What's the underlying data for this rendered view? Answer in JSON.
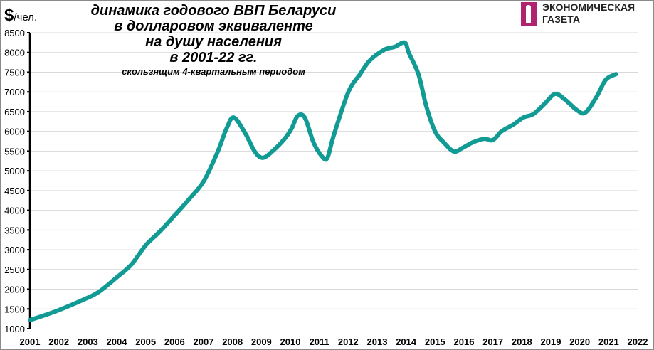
{
  "unit": {
    "symbol": "$",
    "label": "/чел."
  },
  "title_lines": [
    "динамика годового ВВП Беларуси",
    "в долларовом эквиваленте",
    "на душу населения",
    "в 2001-22 гг."
  ],
  "subtitle": "скользящим 4-квартальным периодом",
  "logo": {
    "line1": "ЭКОНОМИЧЕСКАЯ",
    "line2": "ГАЗЕТА",
    "color": "#b0246f"
  },
  "chart_data": {
    "type": "line",
    "title": "динамика годового ВВП Беларуси в долларовом эквиваленте на душу населения в 2001-22 гг.",
    "subtitle": "скользящим 4-квартальным периодом",
    "ylabel": "$/чел.",
    "xlim": [
      2001,
      2022
    ],
    "ylim": [
      1000,
      8500
    ],
    "xticks": [
      "2001",
      "2002",
      "2003",
      "2004",
      "2005",
      "2006",
      "2007",
      "2008",
      "2009",
      "2010",
      "2011",
      "2012",
      "2013",
      "2014",
      "2015",
      "2016",
      "2017",
      "2018",
      "2019",
      "2020",
      "2021",
      "2022"
    ],
    "yticks": [
      1000,
      1500,
      2000,
      2500,
      3000,
      3500,
      4000,
      4500,
      5000,
      5500,
      6000,
      6500,
      7000,
      7500,
      8000,
      8500
    ],
    "grid": "horizontal",
    "color": "#129a94",
    "x": [
      2001.0,
      2001.93,
      2002.92,
      2003.4,
      2004.0,
      2004.5,
      2005.0,
      2005.5,
      2006.0,
      2006.5,
      2007.0,
      2007.47,
      2007.8,
      2008.05,
      2008.45,
      2008.77,
      2009.05,
      2009.4,
      2009.8,
      2010.05,
      2010.25,
      2010.5,
      2010.8,
      2011.1,
      2011.28,
      2011.5,
      2012.0,
      2012.4,
      2012.75,
      2013.25,
      2013.6,
      2013.95,
      2014.1,
      2014.43,
      2014.7,
      2015.0,
      2015.3,
      2015.65,
      2015.95,
      2016.3,
      2016.7,
      2017.0,
      2017.3,
      2017.7,
      2018.05,
      2018.4,
      2018.8,
      2019.15,
      2019.5,
      2019.9,
      2020.2,
      2020.6,
      2020.9,
      2021.25
    ],
    "y": [
      1216,
      1450,
      1757,
      1940,
      2300,
      2620,
      3110,
      3470,
      3870,
      4280,
      4730,
      5450,
      6080,
      6350,
      5940,
      5490,
      5330,
      5510,
      5810,
      6080,
      6390,
      6350,
      5720,
      5360,
      5330,
      5900,
      6990,
      7440,
      7800,
      8070,
      8140,
      8250,
      7980,
      7440,
      6630,
      6000,
      5720,
      5490,
      5580,
      5720,
      5810,
      5780,
      6000,
      6170,
      6350,
      6440,
      6710,
      6950,
      6800,
      6540,
      6480,
      6900,
      7310,
      7450
    ]
  }
}
